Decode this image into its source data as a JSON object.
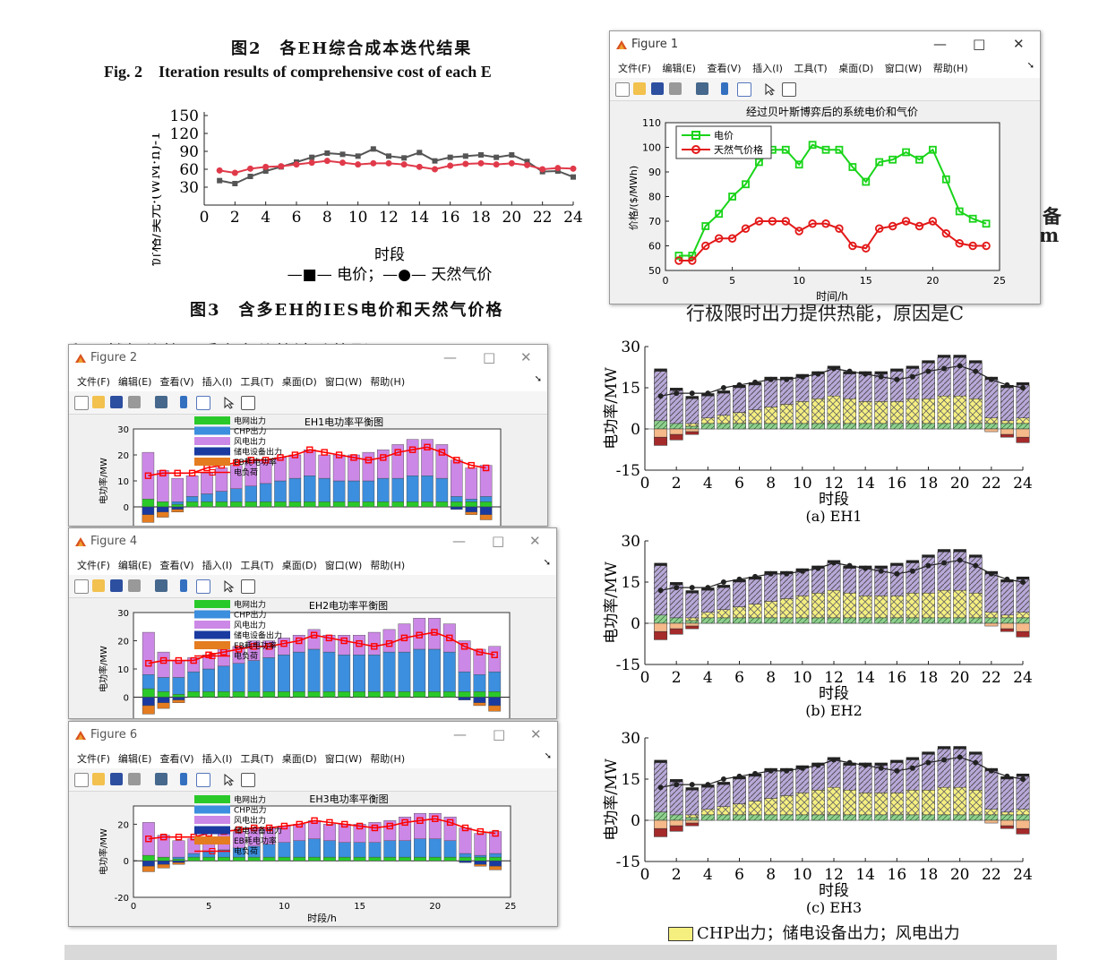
{
  "doc": {
    "fig2_cn": "图2　各EH综合成本迭代结果",
    "fig2_en": "Fig. 2　Iteration results of comprehensive cost of each E",
    "fig3_cn": "图3　含多EH的IES电价和天然气价格",
    "bg_text1": "行极限时出力提供热能，原因是C",
    "bg_text2": "和天然气价格，受电力价格波动的影",
    "right_fragments": [
      "备",
      "m"
    ],
    "bottom_legend": "CHP出力；储电设备出力；风电出力"
  },
  "colors": {
    "elec": "#555555",
    "gas": "#e03a4a",
    "grid": "#2ac92a",
    "chp": "#3c8ede",
    "wind": "#cc88e6",
    "store": "#1a3aa0",
    "eb": "#e47c20",
    "load": "#ff0000"
  },
  "price_chart": {
    "ylabel": "价格/美元·(WM·h)-1",
    "xlabel": "时段",
    "legend": "—■— 电价；—●— 天然气价",
    "xticks": [
      "0",
      "2",
      "4",
      "6",
      "8",
      "10",
      "12",
      "14",
      "16",
      "18",
      "20",
      "22",
      "24"
    ],
    "yticks": [
      "150",
      "120",
      "90",
      "60",
      "30"
    ],
    "chart_data": {
      "type": "line",
      "ylim": [
        0,
        150
      ],
      "xlim": [
        0,
        24
      ],
      "x": [
        1,
        2,
        3,
        4,
        5,
        6,
        7,
        8,
        9,
        10,
        11,
        12,
        13,
        14,
        15,
        16,
        17,
        18,
        19,
        20,
        21,
        22,
        23,
        24
      ],
      "series": [
        {
          "name": "电价",
          "values": [
            41,
            36,
            48,
            57,
            64,
            72,
            80,
            87,
            85,
            82,
            94,
            82,
            79,
            88,
            74,
            80,
            82,
            84,
            80,
            84,
            73,
            56,
            57,
            47
          ]
        },
        {
          "name": "天然气价",
          "values": [
            58,
            54,
            61,
            64,
            65,
            68,
            71,
            74,
            71,
            68,
            70,
            70,
            68,
            64,
            60,
            66,
            69,
            70,
            68,
            70,
            67,
            60,
            62,
            61
          ]
        }
      ]
    }
  },
  "figure1": {
    "title": "Figure 1",
    "menu": [
      "文件(F)",
      "编辑(E)",
      "查看(V)",
      "插入(I)",
      "工具(T)",
      "桌面(D)",
      "窗口(W)",
      "帮助(H)"
    ],
    "plot_title": "经过贝叶斯博弈后的系统电价和气价",
    "ylabel": "价格/($/MWh)",
    "xlabel": "时间/h",
    "legend": [
      "电价",
      "天然气价格"
    ],
    "xticks": [
      "0",
      "5",
      "10",
      "15",
      "20",
      "25"
    ],
    "yticks": [
      "110",
      "100",
      "90",
      "80",
      "70",
      "60",
      "50"
    ],
    "chart_data": {
      "type": "line",
      "ylim": [
        50,
        110
      ],
      "xlim": [
        0,
        25
      ],
      "x": [
        1,
        2,
        3,
        4,
        5,
        6,
        7,
        8,
        9,
        10,
        11,
        12,
        13,
        14,
        15,
        16,
        17,
        18,
        19,
        20,
        21,
        22,
        23,
        24
      ],
      "series": [
        {
          "name": "电价",
          "values": [
            56,
            56,
            68,
            73,
            80,
            85,
            94,
            99,
            99,
            93,
            101,
            99,
            99,
            92,
            86,
            94,
            95,
            98,
            95,
            99,
            87,
            74,
            71,
            69
          ]
        },
        {
          "name": "天然气价格",
          "values": [
            54,
            54,
            60,
            63,
            63,
            67,
            70,
            70,
            70,
            66,
            69,
            69,
            67,
            60,
            59,
            67,
            68,
            70,
            68,
            70,
            65,
            61,
            60,
            60
          ]
        }
      ]
    }
  },
  "mini_windows": [
    {
      "title": "Figure 2",
      "plot_title": "EH1电功率平衡图",
      "ylabel": "电功率/MW"
    },
    {
      "title": "Figure 4",
      "plot_title": "EH2电功率平衡图",
      "ylabel": "电功率/MW"
    },
    {
      "title": "Figure 6",
      "plot_title": "EH3电功率平衡图",
      "ylabel": "电功率/MW",
      "xlabel": "时段/h"
    }
  ],
  "mini_legend": [
    "电网出力",
    "CHP出力",
    "风电出力",
    "储电设备出力",
    "EB耗电功率",
    "电负荷"
  ],
  "mini_xticks": [
    "0",
    "5",
    "10",
    "15",
    "20",
    "25"
  ],
  "eh_chart_data": {
    "type": "bar",
    "load": [
      12,
      13,
      13,
      13,
      15,
      16,
      17,
      18,
      18,
      19,
      20,
      22,
      21,
      20,
      19,
      18,
      19,
      21,
      22,
      23,
      21,
      18,
      16,
      15
    ],
    "wind": [
      18,
      12,
      9,
      8,
      8,
      9,
      9,
      10,
      9,
      9,
      9,
      10,
      9,
      10,
      10,
      11,
      11,
      13,
      14,
      14,
      13,
      14,
      12,
      12
    ],
    "chp": [
      0,
      0,
      1,
      2,
      3,
      4,
      5,
      6,
      7,
      8,
      9,
      10,
      9,
      8,
      8,
      8,
      9,
      9,
      10,
      10,
      9,
      2,
      1,
      2
    ],
    "grid": [
      3,
      2,
      1,
      2,
      2,
      2,
      2,
      2,
      2,
      2,
      2,
      2,
      2,
      2,
      2,
      2,
      2,
      2,
      2,
      2,
      2,
      2,
      2,
      2
    ],
    "store": [
      -3,
      -2,
      -1,
      0,
      0,
      0,
      0,
      0,
      0,
      0,
      0,
      3,
      2,
      0,
      0,
      0,
      0,
      0,
      0,
      0,
      0,
      -1,
      -2,
      -3
    ],
    "eb": [
      -3,
      -2,
      -1,
      0,
      0,
      0,
      0,
      0,
      0,
      0,
      0,
      0,
      0,
      0,
      0,
      0,
      0,
      0,
      0,
      0,
      0,
      0,
      -1,
      -2
    ]
  },
  "paper_charts": [
    {
      "caption": "(a) EH1",
      "ylabel": "电功率/MW",
      "xlabel": "时段"
    },
    {
      "caption": "(b) EH2",
      "ylabel": "电功率/MW",
      "xlabel": "时段"
    },
    {
      "caption": "(c) EH3",
      "ylabel": "电功率/MW",
      "xlabel": "时段"
    }
  ],
  "paper_xticks": [
    "0",
    "2",
    "4",
    "6",
    "8",
    "10",
    "12",
    "14",
    "16",
    "18",
    "20",
    "22",
    "24"
  ],
  "paper_yticks": [
    "30",
    "15",
    "0",
    "-15"
  ],
  "window_controls": [
    "—",
    "□",
    "✕"
  ]
}
